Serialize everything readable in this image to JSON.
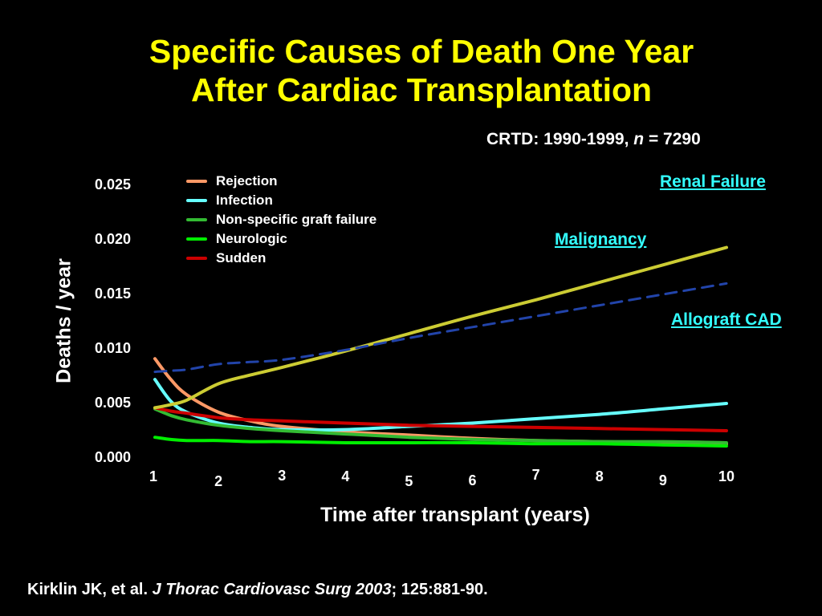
{
  "slide": {
    "title_line1": "Specific Causes of Death One Year",
    "title_line2": "After Cardiac Transplantation",
    "subtitle_prefix": "CRTD: 1990-1999,",
    "subtitle_n": "n",
    "subtitle_suffix": "= 7290",
    "citation_authors": "Kirklin JK, et al.",
    "citation_journal": "J Thorac Cardiovasc Surg 2003",
    "citation_ref": "; 125:881-90."
  },
  "colors": {
    "background": "#000000",
    "title": "#ffff00",
    "annotation": "#33ffff",
    "text": "#ffffff"
  },
  "chart_data": {
    "type": "line",
    "xlabel": "Time after transplant (years)",
    "ylabel": "Deaths / year",
    "xlim": [
      1,
      10
    ],
    "ylim": [
      0,
      0.025
    ],
    "x_ticks": [
      "1",
      "2",
      "3",
      "4",
      "5",
      "6",
      "7",
      "8",
      "9",
      "10"
    ],
    "y_ticks": [
      "0.025",
      "0.020",
      "0.015",
      "0.010",
      "0.005",
      "0.000"
    ],
    "grid": false,
    "legend_position": "top-left",
    "x": [
      1,
      1.25,
      1.5,
      2,
      2.5,
      3,
      4,
      5,
      6,
      7,
      8,
      9,
      10
    ],
    "series": [
      {
        "name": "Rejection",
        "color": "#ff9966",
        "style": "solid",
        "values": [
          0.0091,
          0.0072,
          0.0058,
          0.0042,
          0.0034,
          0.0029,
          0.0024,
          0.0021,
          0.0018,
          0.0016,
          0.0015,
          0.0014,
          0.0013
        ]
      },
      {
        "name": "Infection",
        "color": "#66ffff",
        "style": "solid",
        "values": [
          0.0072,
          0.0052,
          0.0042,
          0.0032,
          0.0028,
          0.0026,
          0.0026,
          0.0029,
          0.0032,
          0.0036,
          0.004,
          0.0045,
          0.005
        ]
      },
      {
        "name": "Non-specific graft failure",
        "color": "#33bb33",
        "style": "solid",
        "values": [
          0.0045,
          0.0039,
          0.0035,
          0.003,
          0.0027,
          0.0025,
          0.0022,
          0.0019,
          0.0017,
          0.0016,
          0.0015,
          0.0015,
          0.0014
        ]
      },
      {
        "name": "Neurologic",
        "color": "#00ee00",
        "style": "solid",
        "values": [
          0.0019,
          0.0017,
          0.0016,
          0.0016,
          0.0015,
          0.0015,
          0.0014,
          0.0014,
          0.0014,
          0.0013,
          0.0013,
          0.0012,
          0.0011
        ]
      },
      {
        "name": "Sudden",
        "color": "#cc0000",
        "style": "solid",
        "values": [
          0.0046,
          0.0043,
          0.0041,
          0.0037,
          0.0035,
          0.0034,
          0.0032,
          0.003,
          0.0029,
          0.0028,
          0.0027,
          0.0026,
          0.0025
        ]
      },
      {
        "name": "Renal Failure",
        "color": "#cccc33",
        "style": "solid",
        "values": [
          0.0046,
          0.0049,
          0.0053,
          0.0068,
          0.0076,
          0.0083,
          0.0098,
          0.0114,
          0.013,
          0.0145,
          0.0161,
          0.0177,
          0.0193
        ]
      },
      {
        "name": "Allograft CAD",
        "color": "#2244aa",
        "style": "dashed",
        "values": [
          0.0079,
          0.008,
          0.0081,
          0.0086,
          0.0088,
          0.009,
          0.0099,
          0.011,
          0.012,
          0.013,
          0.014,
          0.015,
          0.016
        ]
      }
    ],
    "annotations": [
      "Renal Failure",
      "Malignancy",
      "Allograft CAD"
    ],
    "legend_series": [
      "Rejection",
      "Infection",
      "Non-specific graft failure",
      "Neurologic",
      "Sudden"
    ]
  }
}
